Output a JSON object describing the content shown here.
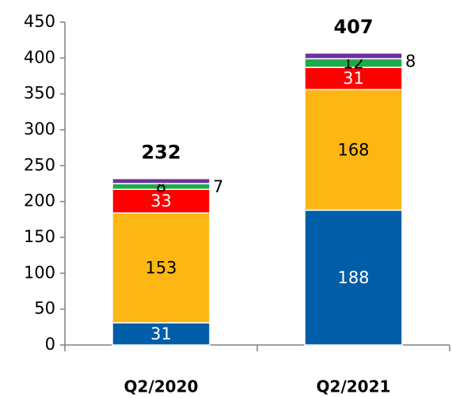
{
  "chart_data": {
    "type": "stacked_bar",
    "categories": [
      "Q2/2020",
      "Q2/2021"
    ],
    "series": [
      {
        "color": "#005ea8",
        "label_color": "#ffffff",
        "values": [
          31,
          188
        ]
      },
      {
        "color": "#fcb714",
        "label_color": "#000000",
        "values": [
          153,
          168
        ]
      },
      {
        "color": "#ff0000",
        "label_color": "#ffffff",
        "values": [
          33,
          31
        ]
      },
      {
        "color": "#1aab4b",
        "label_color": "#000000",
        "values": [
          8,
          12
        ]
      },
      {
        "color": "#7030a0",
        "label_color": "#000000",
        "label_outside": true,
        "values": [
          7,
          8
        ]
      }
    ],
    "totals": [
      232,
      407
    ],
    "ylim": [
      0,
      450
    ],
    "yticks": [
      0,
      50,
      100,
      150,
      200,
      250,
      300,
      350,
      400,
      450
    ],
    "grid": false
  }
}
